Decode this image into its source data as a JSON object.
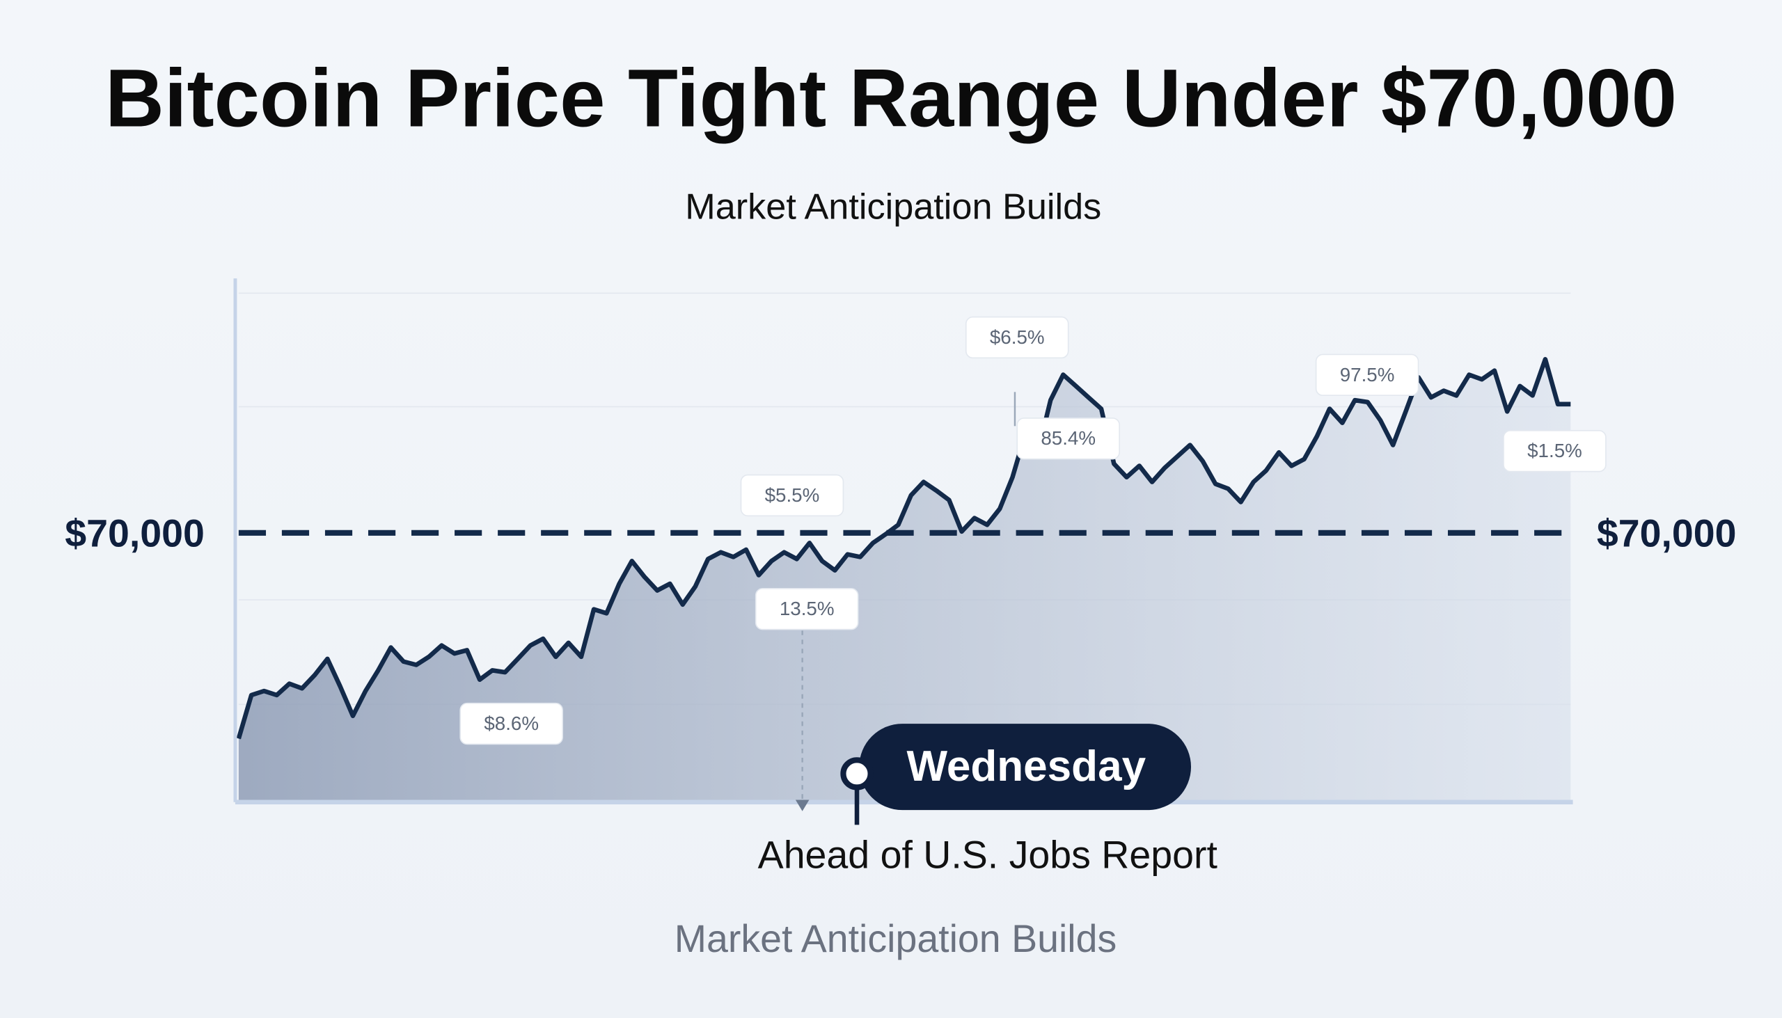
{
  "chart_data": {
    "type": "line",
    "title": "Bitcoin Price Tight Range Under $70,000",
    "subtitle": "Market Anticipation Builds",
    "color": "#132a4a",
    "ylim": [
      66000,
      73000
    ],
    "reference_line": {
      "value": 70000,
      "label": "$70,000"
    },
    "values": [
      66930,
      67580,
      67640,
      67580,
      67750,
      67680,
      67880,
      68120,
      67710,
      67270,
      67640,
      67950,
      68290,
      68080,
      68030,
      68150,
      68320,
      68200,
      68250,
      67810,
      67950,
      67920,
      68120,
      68320,
      68420,
      68150,
      68360,
      68150,
      68860,
      68800,
      69240,
      69580,
      69340,
      69140,
      69240,
      68930,
      69200,
      69610,
      69710,
      69640,
      69750,
      69370,
      69580,
      69710,
      69610,
      69850,
      69580,
      69440,
      69680,
      69640,
      69850,
      69980,
      70120,
      70560,
      70760,
      70630,
      70490,
      70020,
      70220,
      70120,
      70360,
      70830,
      71470,
      71200,
      71980,
      72360,
      72190,
      72020,
      71850,
      71030,
      70830,
      71000,
      70760,
      70970,
      71140,
      71310,
      71070,
      70730,
      70660,
      70460,
      70760,
      70930,
      71200,
      71000,
      71100,
      71440,
      71850,
      71640,
      71980,
      71950,
      71680,
      71310,
      71810,
      72320,
      72020,
      72120,
      72050,
      72360,
      72290,
      72420,
      71810,
      72190,
      72050,
      72590,
      71920,
      71920
    ],
    "annotations": [
      "$6.5%",
      "97.5%",
      "85.4%",
      "$5.5%",
      "$1.5%",
      "13.5%",
      "$8.6%"
    ],
    "event_label": "Wednesday",
    "event_note": "Ahead of U.S. Jobs Report",
    "footer": "Market Anticipation Builds"
  }
}
